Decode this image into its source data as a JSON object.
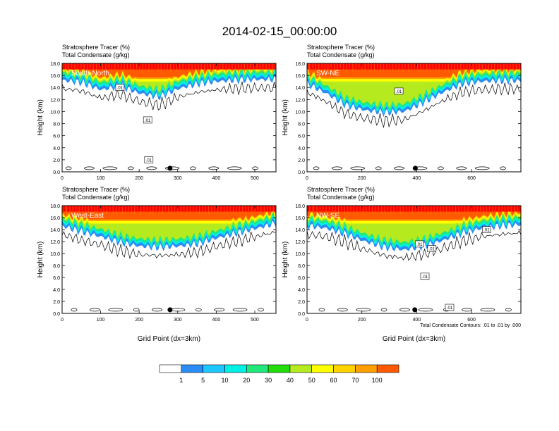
{
  "title": "2014-02-15_00:00:00",
  "panel_subtitle_line1": "Stratosphere Tracer   (%)",
  "panel_subtitle_line2": "Total Condensate   (g/kg)",
  "ylabel": "Height (km)",
  "xlabel": "Grid Point (dx=3km)",
  "contour_note": "Total Condensate Contours: .01 to .01 by .000",
  "contour_label_text": ".01",
  "colorbar": {
    "labels": [
      "1",
      "5",
      "10",
      "20",
      "30",
      "40",
      "50",
      "60",
      "70",
      "100"
    ],
    "colors": [
      "#ffffff",
      "#2a8cf5",
      "#1ec8ff",
      "#00f0e6",
      "#22e87c",
      "#22dc0c",
      "#b4ea1e",
      "#ffff00",
      "#ffd200",
      "#ffa000",
      "#ff5a00",
      "#ff0000"
    ]
  },
  "chart_data": [
    {
      "type": "heatmap",
      "panel_label": "South-North",
      "xlim": [
        0,
        555
      ],
      "ylim": [
        0,
        18
      ],
      "xticks": [
        "0",
        "100",
        "200",
        "300",
        "400",
        "500"
      ],
      "xtick_values": [
        0,
        100,
        200,
        300,
        400,
        500
      ],
      "yticks": [
        "0.0",
        "2.0",
        "4.0",
        "6.0",
        "8.0",
        "10.0",
        "12.0",
        "14.0",
        "16.0",
        "18.0"
      ],
      "marker_x": 280,
      "tracer_base_km": [
        15.2,
        14.8,
        13.6,
        14.2,
        13.0,
        12.4,
        13.8,
        14.6,
        15.0,
        15.2,
        15.3,
        15.3
      ],
      "contour_label_positions": [
        [
          150,
          14.0
        ],
        [
          222,
          8.6
        ],
        [
          225,
          2.0
        ]
      ]
    },
    {
      "type": "heatmap",
      "panel_label": "SW-NE",
      "xlim": [
        0,
        780
      ],
      "ylim": [
        0,
        18
      ],
      "xticks": [
        "0",
        "200",
        "400",
        "600"
      ],
      "xtick_values": [
        0,
        200,
        400,
        600
      ],
      "yticks": [
        "0.0",
        "2.0",
        "4.0",
        "6.0",
        "8.0",
        "10.0",
        "12.0",
        "14.0",
        "16.0",
        "18.0"
      ],
      "marker_x": 395,
      "tracer_base_km": [
        14.6,
        13.0,
        11.0,
        10.2,
        9.8,
        10.0,
        11.5,
        13.2,
        14.6,
        15.0,
        15.1,
        15.1
      ],
      "contour_label_positions": [
        [
          335,
          13.4
        ]
      ]
    },
    {
      "type": "heatmap",
      "panel_label": "West-East",
      "xlim": [
        0,
        555
      ],
      "ylim": [
        0,
        18
      ],
      "xticks": [
        "0",
        "100",
        "200",
        "300",
        "400",
        "500"
      ],
      "xtick_values": [
        0,
        100,
        200,
        300,
        400,
        500
      ],
      "yticks": [
        "0.0",
        "2.0",
        "4.0",
        "6.0",
        "8.0",
        "10.0",
        "12.0",
        "14.0",
        "16.0",
        "18.0"
      ],
      "marker_x": 280,
      "tracer_base_km": [
        14.6,
        13.6,
        12.8,
        11.8,
        11.2,
        11.0,
        11.2,
        11.6,
        12.6,
        13.4,
        14.2,
        15.0
      ],
      "contour_label_positions": []
    },
    {
      "type": "heatmap",
      "panel_label": "NW-SE",
      "xlim": [
        0,
        780
      ],
      "ylim": [
        0,
        18
      ],
      "xticks": [
        "0",
        "200",
        "400",
        "600"
      ],
      "xtick_values": [
        0,
        200,
        400,
        600
      ],
      "yticks": [
        "0.0",
        "2.0",
        "4.0",
        "6.0",
        "8.0",
        "10.0",
        "12.0",
        "14.0",
        "16.0",
        "18.0"
      ],
      "marker_x": 393,
      "tracer_base_km": [
        14.6,
        14.2,
        13.2,
        12.0,
        11.0,
        10.6,
        11.2,
        12.2,
        13.4,
        14.2,
        14.6,
        14.8
      ],
      "contour_label_positions": [
        [
          410,
          11.6
        ],
        [
          455,
          10.8
        ],
        [
          430,
          6.2
        ],
        [
          520,
          1.0
        ],
        [
          655,
          14.0
        ]
      ]
    }
  ]
}
